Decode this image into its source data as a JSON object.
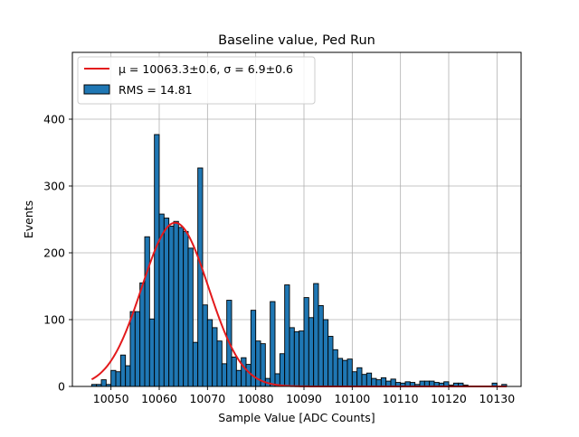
{
  "chart_data": {
    "type": "bar",
    "title": "Baseline value, Ped Run",
    "xlabel": "Sample Value [ADC Counts]",
    "ylabel": "Events",
    "xlim": [
      10042,
      10135
    ],
    "ylim": [
      0,
      500
    ],
    "xticks": [
      10050,
      10060,
      10070,
      10080,
      10090,
      10100,
      10110,
      10120,
      10130
    ],
    "yticks": [
      0,
      100,
      200,
      300,
      400
    ],
    "grid": true,
    "legend_position": "top-left",
    "bin_width": 1,
    "histogram": {
      "name": "RMS = 14.81",
      "color": "#1f77b4",
      "edgecolor": "#000000",
      "bin_starts": [
        10046,
        10047,
        10048,
        10049,
        10050,
        10051,
        10052,
        10053,
        10054,
        10055,
        10056,
        10057,
        10058,
        10059,
        10060,
        10061,
        10062,
        10063,
        10064,
        10065,
        10066,
        10067,
        10068,
        10069,
        10070,
        10071,
        10072,
        10073,
        10074,
        10075,
        10076,
        10077,
        10078,
        10079,
        10080,
        10081,
        10082,
        10083,
        10084,
        10085,
        10086,
        10087,
        10088,
        10089,
        10090,
        10091,
        10092,
        10093,
        10094,
        10095,
        10096,
        10097,
        10098,
        10099,
        10100,
        10101,
        10102,
        10103,
        10104,
        10105,
        10106,
        10107,
        10108,
        10109,
        10110,
        10111,
        10112,
        10113,
        10114,
        10115,
        10116,
        10117,
        10118,
        10119,
        10120,
        10121,
        10122,
        10123,
        10124,
        10125,
        10126,
        10127,
        10128,
        10129,
        10130,
        10131
      ],
      "counts": [
        3,
        3,
        10,
        3,
        24,
        22,
        47,
        31,
        112,
        112,
        155,
        224,
        101,
        377,
        258,
        252,
        240,
        247,
        238,
        232,
        207,
        66,
        327,
        122,
        100,
        88,
        68,
        34,
        129,
        44,
        24,
        43,
        33,
        114,
        68,
        64,
        12,
        127,
        19,
        49,
        152,
        88,
        82,
        83,
        133,
        103,
        154,
        121,
        100,
        75,
        55,
        42,
        39,
        41,
        22,
        28,
        18,
        20,
        12,
        10,
        13,
        8,
        11,
        6,
        5,
        7,
        6,
        3,
        8,
        8,
        8,
        6,
        5,
        7,
        2,
        5,
        5,
        2,
        0,
        0,
        0,
        0,
        0,
        5,
        0,
        3
      ]
    },
    "fit": {
      "name": "μ = 10063.3±0.6, σ = 6.9±0.6",
      "color": "#e31a1c",
      "mu": 10063.3,
      "sigma": 6.9,
      "amplitude": 245,
      "x_range": [
        10046,
        10132
      ]
    }
  }
}
